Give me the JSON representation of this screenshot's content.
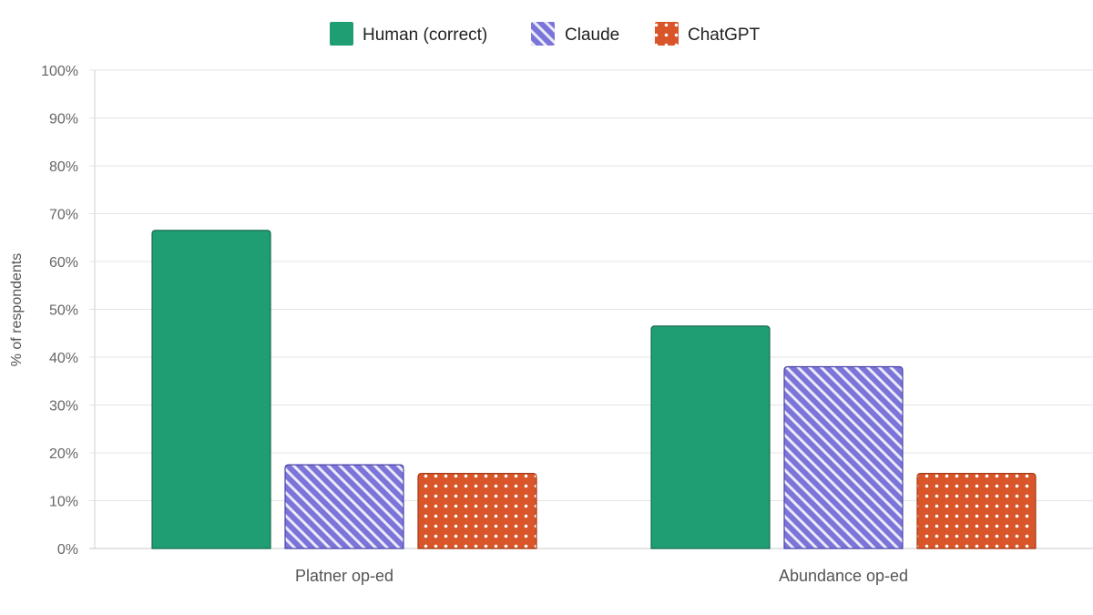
{
  "chart_data": {
    "type": "bar",
    "categories": [
      "Platner op-ed",
      "Abundance op-ed"
    ],
    "series": [
      {
        "name": "Human (correct)",
        "values": [
          66.5,
          46.5
        ],
        "color": "#1f9e74",
        "stroke": "#176b4f",
        "pattern": "solid"
      },
      {
        "name": "Claude",
        "values": [
          17.5,
          38
        ],
        "color": "#7b74d9",
        "stroke": "#4a44a8",
        "pattern": "diagonal-stripes"
      },
      {
        "name": "ChatGPT",
        "values": [
          15.7,
          15.7
        ],
        "color": "#d9552a",
        "stroke": "#a23a17",
        "pattern": "dots"
      }
    ],
    "title": "",
    "xlabel": "",
    "ylabel": "% of respondents",
    "ylim": [
      0,
      100
    ],
    "yticks": [
      "0%",
      "10%",
      "20%",
      "30%",
      "40%",
      "50%",
      "60%",
      "70%",
      "80%",
      "90%",
      "100%"
    ],
    "grid": true,
    "legend_position": "top-center"
  }
}
